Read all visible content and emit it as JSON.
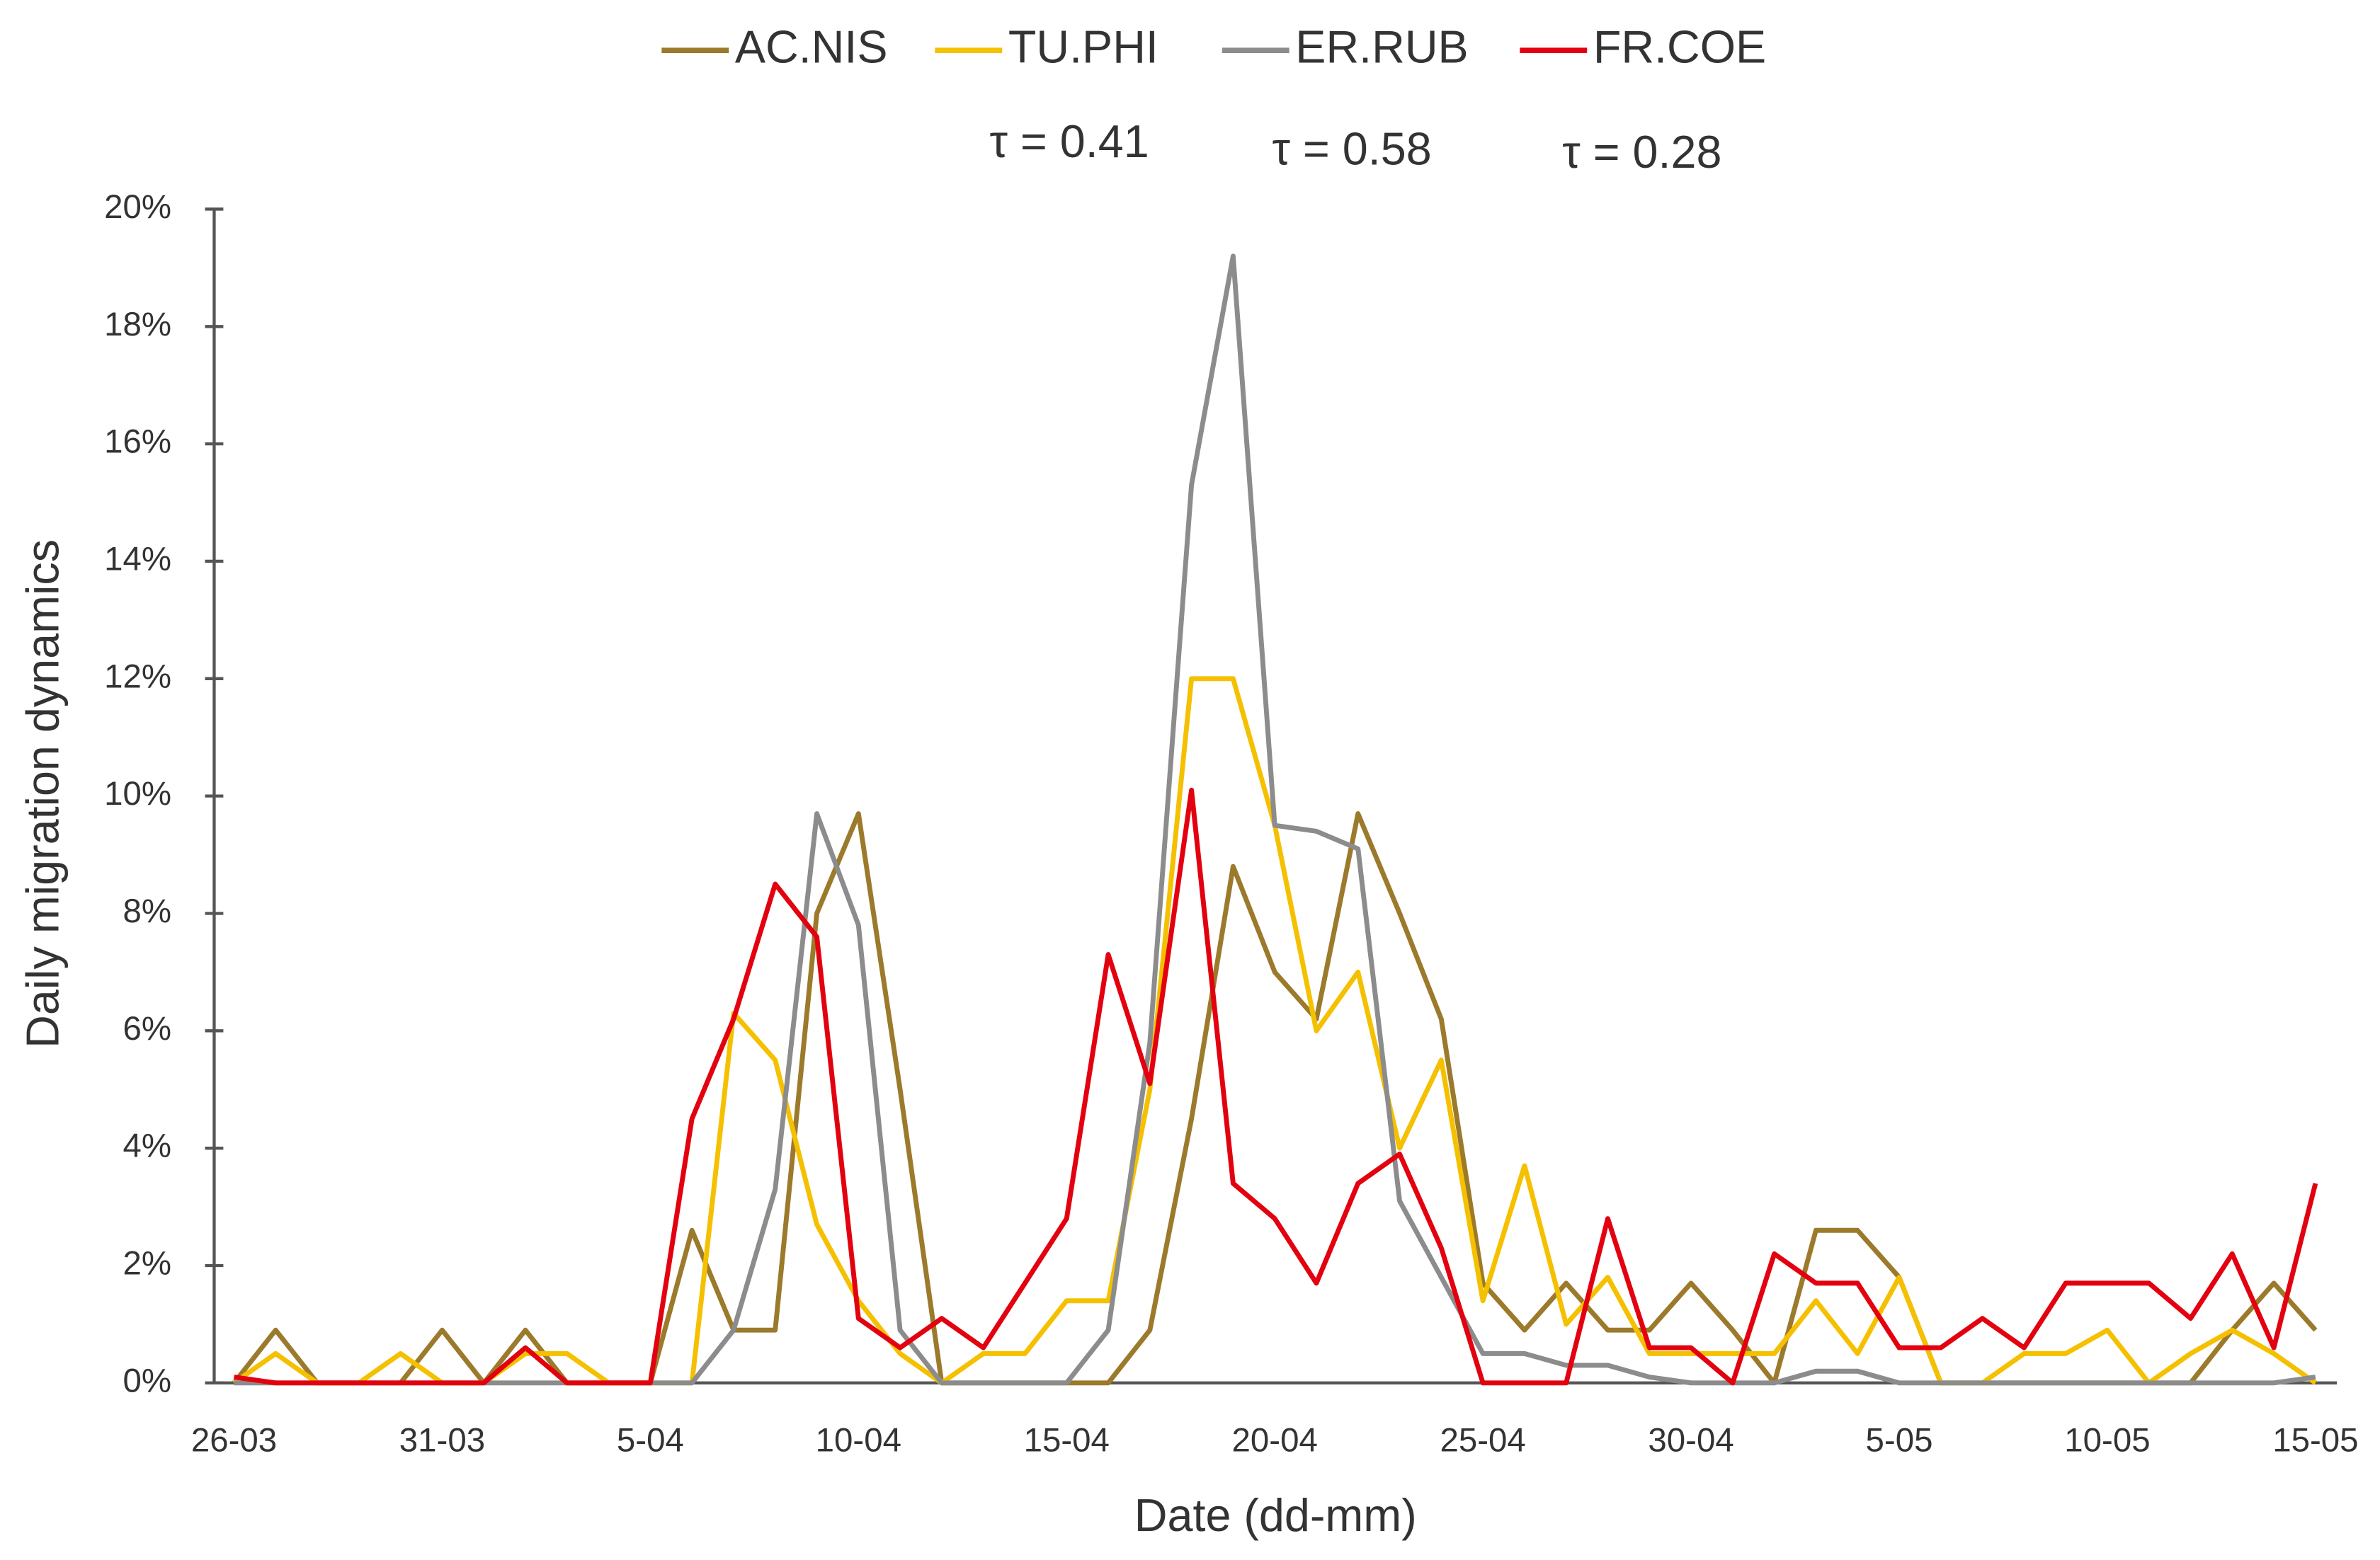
{
  "chart_data": {
    "type": "line",
    "xlabel": "Date (dd-mm)",
    "ylabel": "Daily migration dynamics",
    "annotations": [
      "τ = 0.41",
      "τ = 0.58",
      "τ = 0.28"
    ],
    "categories": [
      "26-03",
      null,
      null,
      null,
      null,
      "31-03",
      null,
      null,
      null,
      null,
      "5-04",
      null,
      null,
      null,
      null,
      "10-04",
      null,
      null,
      null,
      null,
      "15-04",
      null,
      null,
      null,
      null,
      "20-04",
      null,
      null,
      null,
      null,
      "25-04",
      null,
      null,
      null,
      null,
      "30-04",
      null,
      null,
      null,
      null,
      "5-05",
      null,
      null,
      null,
      null,
      "10-05",
      null,
      null,
      null,
      null,
      "15-05"
    ],
    "ylim": [
      0,
      20
    ],
    "yticks": [
      {
        "value": 0,
        "label": "0%"
      },
      {
        "value": 2,
        "label": "2%"
      },
      {
        "value": 4,
        "label": "4%"
      },
      {
        "value": 6,
        "label": "6%"
      },
      {
        "value": 8,
        "label": "8%"
      },
      {
        "value": 10,
        "label": "10%"
      },
      {
        "value": 12,
        "label": "12%"
      },
      {
        "value": 14,
        "label": "14%"
      },
      {
        "value": 16,
        "label": "16%"
      },
      {
        "value": 18,
        "label": "18%"
      },
      {
        "value": 20,
        "label": "20%"
      }
    ],
    "legend": "top",
    "series": [
      {
        "name": "AC.NIS",
        "color": "#9c7a2c",
        "values": [
          0,
          0.9,
          0,
          0,
          0,
          0.9,
          0,
          0.9,
          0,
          0,
          0,
          2.6,
          0.9,
          0.9,
          8,
          9.7,
          5,
          0,
          0,
          0,
          0,
          0,
          0.9,
          4.5,
          8.8,
          7,
          6.2,
          9.7,
          8,
          6.2,
          1.7,
          0.9,
          1.7,
          0.9,
          0.9,
          1.7,
          0.9,
          0,
          2.6,
          2.6,
          1.8,
          0,
          0,
          0,
          0,
          0,
          0,
          0,
          0.9,
          1.7,
          0.9
        ]
      },
      {
        "name": "TU.PHI",
        "color": "#f5c000",
        "values": [
          0,
          0.5,
          0,
          0,
          0.5,
          0,
          0,
          0.5,
          0.5,
          0,
          0,
          0,
          6.3,
          5.5,
          2.7,
          1.4,
          0.5,
          0,
          0.5,
          0.5,
          1.4,
          1.4,
          5,
          12,
          12,
          9.5,
          6,
          7,
          4,
          5.5,
          1.4,
          3.7,
          1,
          1.8,
          0.5,
          0.5,
          0.5,
          0.5,
          1.4,
          0.5,
          1.8,
          0,
          0,
          0.5,
          0.5,
          0.9,
          0,
          0.5,
          0.9,
          0.5,
          0
        ]
      },
      {
        "name": "ER.RUB",
        "color": "#8c8c8c",
        "values": [
          0,
          0,
          0,
          0,
          0,
          0,
          0,
          0,
          0,
          0,
          0,
          0,
          0.9,
          3.3,
          9.7,
          7.8,
          0.9,
          0,
          0,
          0,
          0,
          0.9,
          5.8,
          15.3,
          19.2,
          9.5,
          9.4,
          9.1,
          3.1,
          1.8,
          0.5,
          0.5,
          0.3,
          0.3,
          0.1,
          0,
          0,
          0,
          0.2,
          0.2,
          0,
          0,
          0,
          0,
          0,
          0,
          0,
          0,
          0,
          0,
          0.1
        ]
      },
      {
        "name": "FR.COE",
        "color": "#e3000f",
        "values": [
          0.1,
          0,
          0,
          0,
          0,
          0,
          0,
          0.6,
          0,
          0,
          0,
          4.5,
          6.2,
          8.5,
          7.6,
          1.1,
          0.6,
          1.1,
          0.6,
          1.7,
          2.8,
          7.3,
          5.1,
          10.1,
          3.4,
          2.8,
          1.7,
          3.4,
          3.9,
          2.3,
          0,
          0,
          0,
          2.8,
          0.6,
          0.6,
          0,
          2.2,
          1.7,
          1.7,
          0.6,
          0.6,
          1.1,
          0.6,
          1.7,
          1.7,
          1.7,
          1.1,
          2.2,
          0.6,
          3.4
        ]
      }
    ]
  }
}
